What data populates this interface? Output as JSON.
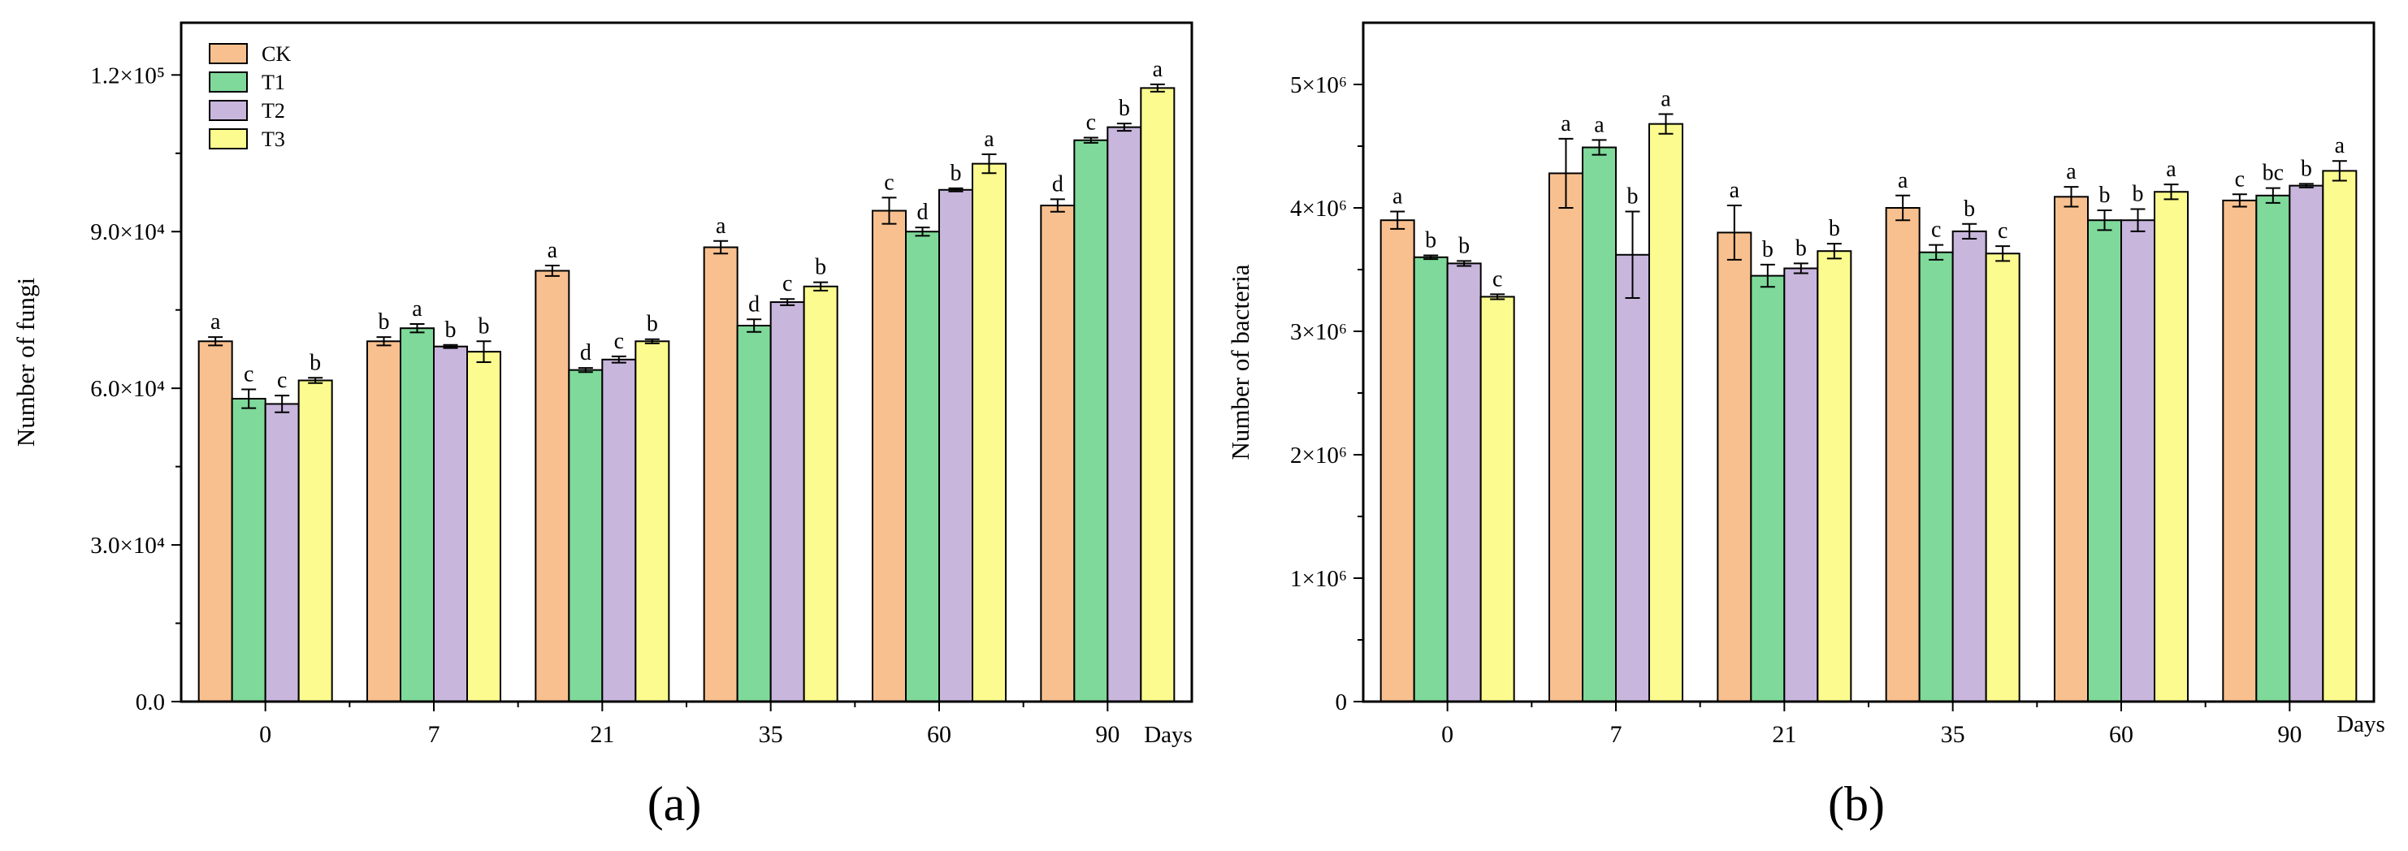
{
  "chart_data": [
    {
      "type": "bar",
      "panel_label": "(a)",
      "ylabel": "Number of fungi",
      "xlabel": "Days",
      "ylim": [
        0,
        130000
      ],
      "yticks": [
        0,
        30000,
        60000,
        90000,
        120000
      ],
      "ytick_labels": [
        "0.0",
        "3.0×10⁴",
        "6.0×10⁴",
        "9.0×10⁴",
        "1.2×10⁵"
      ],
      "categories": [
        "0",
        "7",
        "21",
        "35",
        "60",
        "90"
      ],
      "legend_location": "top-left",
      "series": [
        {
          "name": "CK",
          "color": "#F9C08F",
          "values": [
            69000,
            69000,
            82500,
            87000,
            94000,
            95000
          ],
          "errors": [
            800,
            800,
            1000,
            1200,
            2500,
            1200
          ],
          "letters": [
            "a",
            "b",
            "a",
            "a",
            "c",
            "d"
          ]
        },
        {
          "name": "T1",
          "color": "#7FD99A",
          "values": [
            58000,
            71500,
            63500,
            72000,
            90000,
            107500
          ],
          "errors": [
            1800,
            800,
            400,
            1200,
            800,
            500
          ],
          "letters": [
            "c",
            "a",
            "d",
            "d",
            "d",
            "c"
          ]
        },
        {
          "name": "T2",
          "color": "#C8B6DD",
          "values": [
            57000,
            68000,
            65500,
            76500,
            98000,
            110000
          ],
          "errors": [
            1600,
            300,
            600,
            600,
            300,
            700
          ],
          "letters": [
            "c",
            "b",
            "c",
            "c",
            "b",
            "b"
          ]
        },
        {
          "name": "T3",
          "color": "#FBFB8F",
          "values": [
            61500,
            67000,
            69000,
            79500,
            103000,
            117500
          ],
          "errors": [
            500,
            2000,
            400,
            800,
            1800,
            700
          ],
          "letters": [
            "b",
            "b",
            "b",
            "b",
            "a",
            "a"
          ]
        }
      ]
    },
    {
      "type": "bar",
      "panel_label": "(b)",
      "ylabel": "Number of bacteria",
      "xlabel": "Days",
      "ylim": [
        0,
        5500000
      ],
      "yticks": [
        0,
        1000000,
        2000000,
        3000000,
        4000000,
        5000000
      ],
      "ytick_labels": [
        "0",
        "1×10⁶",
        "2×10⁶",
        "3×10⁶",
        "4×10⁶",
        "5×10⁶"
      ],
      "categories": [
        "0",
        "7",
        "21",
        "35",
        "60",
        "90"
      ],
      "series": [
        {
          "name": "CK",
          "color": "#F9C08F",
          "values": [
            3900000,
            4280000,
            3800000,
            4000000,
            4090000,
            4060000
          ],
          "errors": [
            70000,
            280000,
            220000,
            100000,
            80000,
            50000
          ],
          "letters": [
            "a",
            "a",
            "a",
            "a",
            "a",
            "c"
          ]
        },
        {
          "name": "T1",
          "color": "#7FD99A",
          "values": [
            3600000,
            4490000,
            3450000,
            3640000,
            3900000,
            4100000
          ],
          "errors": [
            15000,
            60000,
            90000,
            60000,
            80000,
            60000
          ],
          "letters": [
            "b",
            "a",
            "b",
            "c",
            "b",
            "bc"
          ]
        },
        {
          "name": "T2",
          "color": "#C8B6DD",
          "values": [
            3550000,
            3620000,
            3510000,
            3810000,
            3900000,
            4180000
          ],
          "errors": [
            20000,
            350000,
            40000,
            60000,
            90000,
            15000
          ],
          "letters": [
            "b",
            "b",
            "b",
            "b",
            "b",
            "b"
          ]
        },
        {
          "name": "T3",
          "color": "#FBFB8F",
          "values": [
            3280000,
            4680000,
            3650000,
            3630000,
            4130000,
            4300000
          ],
          "errors": [
            20000,
            80000,
            60000,
            60000,
            60000,
            80000
          ],
          "letters": [
            "c",
            "a",
            "b",
            "c",
            "a",
            "a"
          ]
        }
      ]
    }
  ]
}
